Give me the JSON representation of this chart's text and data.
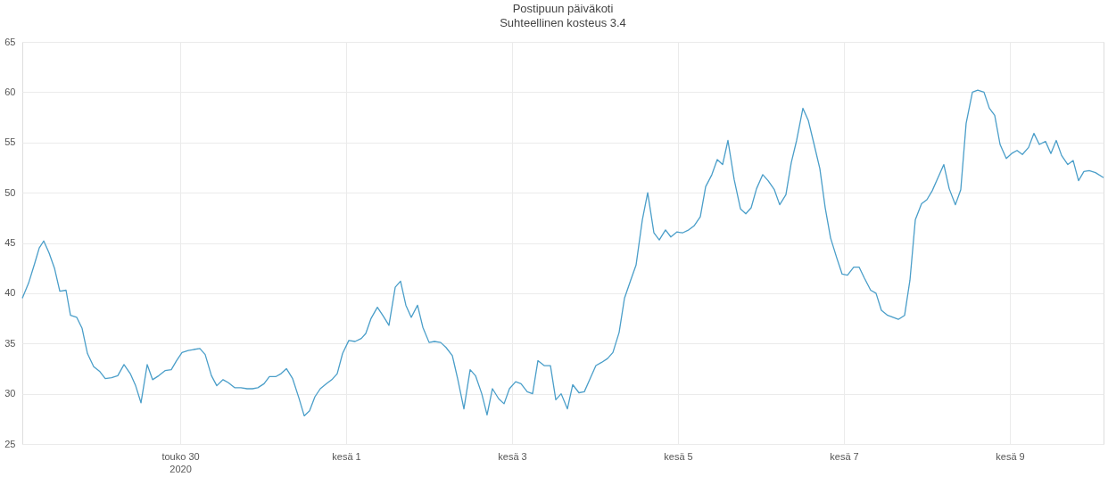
{
  "chart_data": {
    "type": "line",
    "title": "Postipuun päiväkoti",
    "subtitle": "Suhteellinen kosteus 3.4",
    "x": [
      "2020-05-28T02:19",
      "2020-05-28T04:08",
      "2020-05-28T05:56",
      "2020-05-28T07:13",
      "2020-05-28T08:31",
      "2020-05-28T10:04",
      "2020-05-28T11:37",
      "2020-05-28T13:10",
      "2020-05-28T14:58",
      "2020-05-28T16:15",
      "2020-05-28T18:04",
      "2020-05-28T19:37",
      "2020-05-28T21:10",
      "2020-05-28T22:58",
      "2020-05-29T00:46",
      "2020-05-29T02:19",
      "2020-05-29T04:08",
      "2020-05-29T05:56",
      "2020-05-29T07:44",
      "2020-05-29T09:33",
      "2020-05-29T11:06",
      "2020-05-29T12:39",
      "2020-05-29T14:27",
      "2020-05-29T16:00",
      "2020-05-29T17:48",
      "2020-05-29T19:37",
      "2020-05-29T21:25",
      "2020-05-29T22:58",
      "2020-05-30T00:31",
      "2020-05-30T02:19",
      "2020-05-30T03:52",
      "2020-05-30T05:41",
      "2020-05-30T07:13",
      "2020-05-30T09:02",
      "2020-05-30T10:35",
      "2020-05-30T12:23",
      "2020-05-30T13:56",
      "2020-05-30T15:44",
      "2020-05-30T17:33",
      "2020-05-30T19:21",
      "2020-05-30T20:54",
      "2020-05-30T22:27",
      "2020-05-31T00:15",
      "2020-05-31T01:48",
      "2020-05-31T03:37",
      "2020-05-31T05:10",
      "2020-05-31T06:43",
      "2020-05-31T08:31",
      "2020-05-31T10:19",
      "2020-05-31T11:52",
      "2020-05-31T13:25",
      "2020-05-31T14:58",
      "2020-05-31T16:31",
      "2020-05-31T18:19",
      "2020-05-31T19:52",
      "2020-05-31T21:25",
      "2020-05-31T22:58",
      "2020-06-01T00:46",
      "2020-06-01T02:35",
      "2020-06-01T04:23",
      "2020-06-01T05:41",
      "2020-06-01T07:13",
      "2020-06-01T09:02",
      "2020-06-01T10:35",
      "2020-06-01T12:23",
      "2020-06-01T14:12",
      "2020-06-01T15:44",
      "2020-06-01T17:17",
      "2020-06-01T18:50",
      "2020-06-01T20:39",
      "2020-06-01T22:12",
      "2020-06-02T00:00",
      "2020-06-02T01:33",
      "2020-06-02T03:21",
      "2020-06-02T04:54",
      "2020-06-02T06:43",
      "2020-06-02T08:15",
      "2020-06-02T10:04",
      "2020-06-02T11:52",
      "2020-06-02T13:25",
      "2020-06-02T15:14",
      "2020-06-02T16:46",
      "2020-06-02T18:19",
      "2020-06-02T20:08",
      "2020-06-02T21:41",
      "2020-06-02T23:14",
      "2020-06-03T01:02",
      "2020-06-03T02:35",
      "2020-06-03T04:23",
      "2020-06-03T05:56",
      "2020-06-03T07:29",
      "2020-06-03T09:17",
      "2020-06-03T11:06",
      "2020-06-03T12:39",
      "2020-06-03T14:12",
      "2020-06-03T16:00",
      "2020-06-03T17:33",
      "2020-06-03T19:21",
      "2020-06-03T20:54",
      "2020-06-03T22:27",
      "2020-06-04T00:15",
      "2020-06-04T01:48",
      "2020-06-04T03:37",
      "2020-06-04T05:10",
      "2020-06-04T06:58",
      "2020-06-04T08:31",
      "2020-06-04T10:19",
      "2020-06-04T11:52",
      "2020-06-04T13:41",
      "2020-06-04T15:14",
      "2020-06-04T17:02",
      "2020-06-04T18:35",
      "2020-06-04T20:23",
      "2020-06-04T21:56",
      "2020-06-04T23:44",
      "2020-06-05T01:17",
      "2020-06-05T03:06",
      "2020-06-05T04:39",
      "2020-06-05T06:27",
      "2020-06-05T08:00",
      "2020-06-05T09:48",
      "2020-06-05T11:21",
      "2020-06-05T12:54",
      "2020-06-05T14:27",
      "2020-06-05T16:15",
      "2020-06-05T18:04",
      "2020-06-05T19:37",
      "2020-06-05T21:10",
      "2020-06-05T22:43",
      "2020-06-06T00:31",
      "2020-06-06T02:04",
      "2020-06-06T03:52",
      "2020-06-06T05:25",
      "2020-06-06T07:13",
      "2020-06-06T08:46",
      "2020-06-06T10:19",
      "2020-06-06T12:08",
      "2020-06-06T13:41",
      "2020-06-06T15:14",
      "2020-06-06T17:02",
      "2020-06-06T18:35",
      "2020-06-06T20:08",
      "2020-06-06T21:56",
      "2020-06-06T23:29",
      "2020-06-07T01:02",
      "2020-06-07T02:50",
      "2020-06-07T04:23",
      "2020-06-07T05:56",
      "2020-06-07T07:44",
      "2020-06-07T09:17",
      "2020-06-07T10:50",
      "2020-06-07T12:39",
      "2020-06-07T14:12",
      "2020-06-07T15:44",
      "2020-06-07T17:33",
      "2020-06-07T19:06",
      "2020-06-07T20:39",
      "2020-06-07T22:27",
      "2020-06-08T00:00",
      "2020-06-08T01:33",
      "2020-06-08T03:06",
      "2020-06-08T04:54",
      "2020-06-08T06:27",
      "2020-06-08T08:15",
      "2020-06-08T09:48",
      "2020-06-08T11:21",
      "2020-06-08T13:10",
      "2020-06-08T14:43",
      "2020-06-08T16:31",
      "2020-06-08T18:04",
      "2020-06-08T19:37",
      "2020-06-08T21:10",
      "2020-06-08T22:58",
      "2020-06-09T00:31",
      "2020-06-09T02:04",
      "2020-06-09T03:37",
      "2020-06-09T05:25",
      "2020-06-09T06:58",
      "2020-06-09T08:31",
      "2020-06-09T10:19",
      "2020-06-09T11:52",
      "2020-06-09T13:25",
      "2020-06-09T14:58",
      "2020-06-09T16:46",
      "2020-06-09T18:19",
      "2020-06-09T19:52",
      "2020-06-09T21:25",
      "2020-06-09T22:58",
      "2020-06-10T00:46",
      "2020-06-10T03:06"
    ],
    "series": [
      {
        "color": "#4a9ec9",
        "values": [
          39.5,
          41,
          43,
          44.5,
          45.2,
          44,
          42.5,
          40.2,
          40.3,
          37.8,
          37.6,
          36.5,
          34,
          32.7,
          32.2,
          31.5,
          31.6,
          31.8,
          32.9,
          32,
          30.8,
          29.1,
          32.9,
          31.4,
          31.8,
          32.3,
          32.4,
          33.3,
          34.1,
          34.3,
          34.4,
          34.5,
          33.9,
          31.8,
          30.8,
          31.4,
          31.1,
          30.6,
          30.6,
          30.5,
          30.5,
          30.6,
          31,
          31.7,
          31.7,
          32,
          32.5,
          31.5,
          29.6,
          27.8,
          28.3,
          29.7,
          30.5,
          31,
          31.4,
          32,
          34,
          35.3,
          35.2,
          35.5,
          36,
          37.5,
          38.6,
          37.8,
          36.8,
          40.6,
          41.2,
          38.8,
          37.6,
          38.8,
          36.6,
          35.1,
          35.2,
          35.1,
          34.6,
          33.8,
          31.5,
          28.5,
          32.4,
          31.8,
          30,
          27.9,
          30.5,
          29.5,
          29,
          30.5,
          31.2,
          31,
          30.2,
          30,
          33.3,
          32.8,
          32.8,
          29.4,
          30,
          28.5,
          30.9,
          30.1,
          30.2,
          31.4,
          32.8,
          33.1,
          33.5,
          34.1,
          36.1,
          39.5,
          41.3,
          42.8,
          47.3,
          50,
          46,
          45.3,
          46.3,
          45.6,
          46.1,
          46,
          46.3,
          46.7,
          47.6,
          50.6,
          51.8,
          53.3,
          52.8,
          55.2,
          51.3,
          48.4,
          47.9,
          48.5,
          50.4,
          51.8,
          51.2,
          50.3,
          48.8,
          49.8,
          53,
          55.2,
          58.4,
          57.2,
          55,
          52.4,
          48.5,
          45.5,
          43.5,
          41.9,
          41.8,
          42.6,
          42.6,
          41.5,
          40.3,
          40,
          38.3,
          37.8,
          37.6,
          37.4,
          37.8,
          41.3,
          47.3,
          48.9,
          49.3,
          50.2,
          51.4,
          52.8,
          50.4,
          48.8,
          50.3,
          56.9,
          60,
          60.2,
          60,
          58.4,
          57.7,
          54.8,
          53.4,
          53.9,
          54.2,
          53.8,
          54.5,
          55.9,
          54.8,
          55.1,
          53.9,
          55.2,
          53.7,
          52.8,
          53.2,
          51.2,
          52.1,
          52.2,
          52,
          51.5
        ]
      }
    ],
    "xlim": [
      "2020-05-28T02:19",
      "2020-06-10T03:06"
    ],
    "xticks": [
      {
        "value": "2020-05-30",
        "label": "touko 30\n2020"
      },
      {
        "value": "2020-06-01",
        "label": "kesä 1"
      },
      {
        "value": "2020-06-03",
        "label": "kesä 3"
      },
      {
        "value": "2020-06-05",
        "label": "kesä 5"
      },
      {
        "value": "2020-06-07",
        "label": "kesä 7"
      },
      {
        "value": "2020-06-09",
        "label": "kesä 9"
      }
    ],
    "ylim": [
      25,
      65
    ],
    "yticks": [
      25,
      30,
      35,
      40,
      45,
      50,
      55,
      60,
      65
    ],
    "grid": true,
    "line_style": "solid",
    "marker": "none",
    "legend": false
  }
}
